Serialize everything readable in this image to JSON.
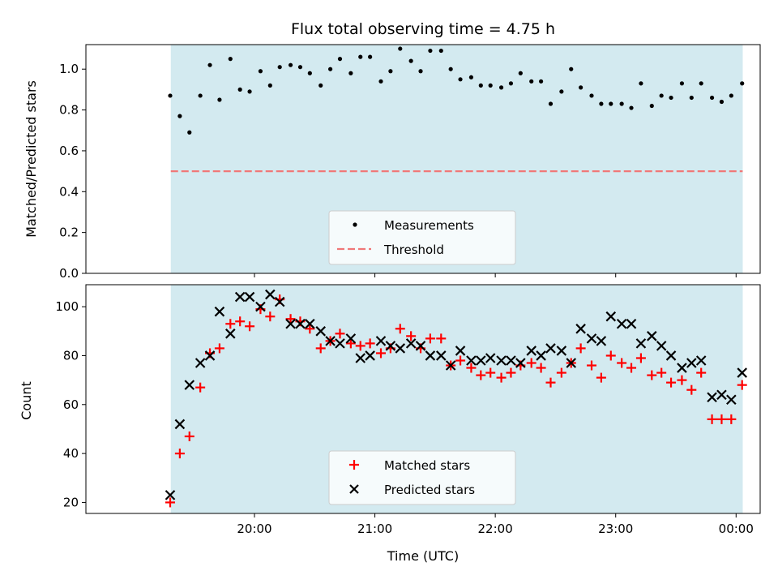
{
  "chart_data": {
    "title": "Flux total observing time = 4.75 h",
    "xlabel": "Time (UTC)",
    "xticks": [
      "20:00",
      "21:00",
      "22:00",
      "23:00",
      "00:00"
    ],
    "xtick_hours": [
      20,
      21,
      22,
      23,
      24
    ],
    "observing_window": [
      19.305,
      24.055
    ],
    "xlim": [
      18.6,
      24.2
    ],
    "colors": {
      "window": "#d3eaf0",
      "measurement": "#000000",
      "threshold": "#f07878",
      "matched": "#ff0000",
      "predicted": "#000000"
    },
    "panels": [
      {
        "type": "scatter",
        "ylabel": "Matched/Predicted stars",
        "ylim": [
          0,
          1.12
        ],
        "yticks": [
          "0.0",
          "0.2",
          "0.4",
          "0.6",
          "0.8",
          "1.0"
        ],
        "ytick_values": [
          0,
          0.2,
          0.4,
          0.6,
          0.8,
          1.0
        ],
        "threshold": 0.5,
        "legend": {
          "placement": "lower center",
          "entries": [
            "Measurements",
            "Threshold"
          ]
        },
        "x": [
          19.3,
          19.38,
          19.46,
          19.55,
          19.63,
          19.71,
          19.8,
          19.88,
          19.96,
          20.05,
          20.13,
          20.21,
          20.3,
          20.38,
          20.46,
          20.55,
          20.63,
          20.71,
          20.8,
          20.88,
          20.96,
          21.05,
          21.13,
          21.21,
          21.3,
          21.38,
          21.46,
          21.55,
          21.63,
          21.71,
          21.8,
          21.88,
          21.96,
          22.05,
          22.13,
          22.21,
          22.3,
          22.38,
          22.46,
          22.55,
          22.63,
          22.71,
          22.8,
          22.88,
          22.96,
          23.05,
          23.13,
          23.21,
          23.3,
          23.38,
          23.46,
          23.55,
          23.63,
          23.71,
          23.8,
          23.88,
          23.96,
          24.05
        ],
        "y": [
          0.87,
          0.77,
          0.69,
          0.87,
          1.02,
          0.85,
          1.05,
          0.9,
          0.89,
          0.99,
          0.92,
          1.01,
          1.02,
          1.01,
          0.98,
          0.92,
          1.0,
          1.05,
          0.98,
          1.06,
          1.06,
          0.94,
          0.99,
          1.1,
          1.04,
          0.99,
          1.09,
          1.09,
          1.0,
          0.95,
          0.96,
          0.92,
          0.92,
          0.91,
          0.93,
          0.98,
          0.94,
          0.94,
          0.83,
          0.89,
          1.0,
          0.91,
          0.87,
          0.83,
          0.83,
          0.83,
          0.81,
          0.93,
          0.82,
          0.87,
          0.86,
          0.93,
          0.86,
          0.93,
          0.86,
          0.84,
          0.87,
          0.93
        ]
      },
      {
        "type": "scatter",
        "ylabel": "Count",
        "ylim": [
          15.5,
          109
        ],
        "yticks": [
          "20",
          "40",
          "60",
          "80",
          "100"
        ],
        "ytick_values": [
          20,
          40,
          60,
          80,
          100
        ],
        "legend": {
          "placement": "lower center",
          "entries": [
            "Matched stars",
            "Predicted stars"
          ]
        },
        "x": [
          19.3,
          19.38,
          19.46,
          19.55,
          19.63,
          19.71,
          19.8,
          19.88,
          19.96,
          20.05,
          20.13,
          20.21,
          20.3,
          20.38,
          20.46,
          20.55,
          20.63,
          20.71,
          20.8,
          20.88,
          20.96,
          21.05,
          21.13,
          21.21,
          21.3,
          21.38,
          21.46,
          21.55,
          21.63,
          21.71,
          21.8,
          21.88,
          21.96,
          22.05,
          22.13,
          22.21,
          22.3,
          22.38,
          22.46,
          22.55,
          22.63,
          22.71,
          22.8,
          22.88,
          22.96,
          23.05,
          23.13,
          23.21,
          23.3,
          23.38,
          23.46,
          23.55,
          23.63,
          23.71,
          23.8,
          23.88,
          23.96,
          24.05
        ],
        "series": [
          {
            "name": "Matched stars",
            "values": [
              20,
              40,
              47,
              67,
              81,
              83,
              93,
              94,
              92,
              99,
              96,
              103,
              95,
              94,
              91,
              83,
              86,
              89,
              85,
              84,
              85,
              81,
              83,
              91,
              88,
              83,
              87,
              87,
              76,
              78,
              75,
              72,
              73,
              71,
              73,
              76,
              77,
              75,
              69,
              73,
              77,
              83,
              76,
              71,
              80,
              77,
              75,
              79,
              72,
              73,
              69,
              70,
              66,
              73,
              54,
              54,
              54,
              68
            ]
          },
          {
            "name": "Predicted stars",
            "values": [
              23,
              52,
              68,
              77,
              80,
              98,
              89,
              104,
              104,
              100,
              105,
              102,
              93,
              93,
              93,
              90,
              86,
              85,
              87,
              79,
              80,
              86,
              84,
              83,
              85,
              84,
              80,
              80,
              76,
              82,
              78,
              78,
              79,
              78,
              78,
              77,
              82,
              80,
              83,
              82,
              77,
              91,
              87,
              86,
              96,
              93,
              93,
              85,
              88,
              84,
              80,
              75,
              77,
              78,
              63,
              64,
              62,
              73
            ]
          }
        ]
      }
    ]
  }
}
